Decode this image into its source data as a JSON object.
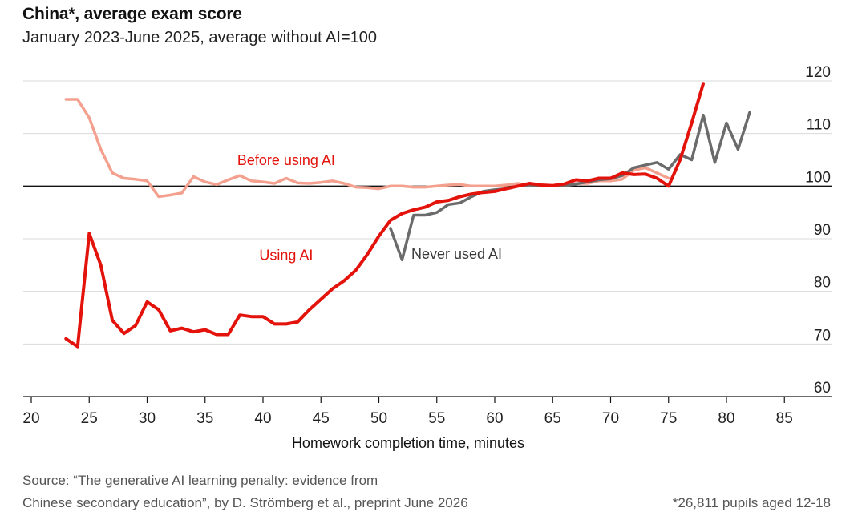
{
  "header": {
    "title": "China*, average exam score",
    "subtitle": "January 2023-June 2025, average without AI=100"
  },
  "footer": {
    "source_line1": "Source: “The generative AI learning penalty: evidence from",
    "source_line2": "Chinese secondary education”, by D. Strömberg et al., preprint June 2026",
    "note": "*26,811 pupils aged 12-18"
  },
  "chart_data": {
    "type": "line",
    "title": "China*, average exam score",
    "subtitle": "January 2023-June 2025, average without AI=100",
    "xlabel": "Homework completion time, minutes",
    "ylabel": "",
    "xlim": [
      19,
      88
    ],
    "ylim": [
      60,
      120
    ],
    "xticks": [
      20,
      25,
      30,
      35,
      40,
      45,
      50,
      55,
      60,
      65,
      70,
      75,
      80,
      85
    ],
    "yticks": [
      60,
      70,
      80,
      90,
      100,
      110,
      120
    ],
    "reference_line": 100,
    "grid": "horizontal",
    "colors": {
      "using_ai": "#e3120b",
      "before_ai": "#f4a08f",
      "never_ai": "#6b6b6b",
      "grid": "#d9d9d9",
      "reference": "#121212"
    },
    "series": [
      {
        "name": "Before using AI",
        "color": "#f4a08f",
        "label_at": [
          42,
          104
        ],
        "points": [
          [
            23,
            116.5
          ],
          [
            24,
            116.5
          ],
          [
            25,
            113
          ],
          [
            26,
            107
          ],
          [
            27,
            102.5
          ],
          [
            28,
            101.5
          ],
          [
            29,
            101.3
          ],
          [
            30,
            101
          ],
          [
            31,
            98
          ],
          [
            32,
            98.3
          ],
          [
            33,
            98.7
          ],
          [
            34,
            101.8
          ],
          [
            35,
            100.8
          ],
          [
            36,
            100.3
          ],
          [
            37,
            101.2
          ],
          [
            38,
            102
          ],
          [
            39,
            101
          ],
          [
            40,
            100.8
          ],
          [
            41,
            100.5
          ],
          [
            42,
            101.5
          ],
          [
            43,
            100.6
          ],
          [
            44,
            100.5
          ],
          [
            45,
            100.7
          ],
          [
            46,
            101
          ],
          [
            47,
            100.5
          ],
          [
            48,
            99.8
          ],
          [
            49,
            99.7
          ],
          [
            50,
            99.5
          ],
          [
            51,
            100
          ],
          [
            52,
            100
          ],
          [
            53,
            99.8
          ],
          [
            54,
            99.8
          ],
          [
            55,
            100
          ],
          [
            56,
            100.2
          ],
          [
            57,
            100.3
          ],
          [
            58,
            100
          ],
          [
            59,
            100
          ],
          [
            60,
            100
          ],
          [
            61,
            100.2
          ],
          [
            62,
            100.5
          ],
          [
            63,
            100
          ],
          [
            64,
            100
          ],
          [
            65,
            100
          ],
          [
            66,
            100.3
          ],
          [
            67,
            100.5
          ],
          [
            68,
            100.5
          ],
          [
            69,
            101
          ],
          [
            70,
            101
          ],
          [
            71,
            101.3
          ],
          [
            72,
            103
          ],
          [
            73,
            103.5
          ],
          [
            74,
            102.5
          ],
          [
            75,
            101.5
          ]
        ]
      },
      {
        "name": "Using AI",
        "color": "#e3120b",
        "label_at": [
          42,
          86
        ],
        "points": [
          [
            23,
            71
          ],
          [
            24,
            69.5
          ],
          [
            25,
            91
          ],
          [
            26,
            85
          ],
          [
            27,
            74.5
          ],
          [
            28,
            72
          ],
          [
            29,
            73.5
          ],
          [
            30,
            78
          ],
          [
            31,
            76.5
          ],
          [
            32,
            72.5
          ],
          [
            33,
            73
          ],
          [
            34,
            72.3
          ],
          [
            35,
            72.7
          ],
          [
            36,
            71.8
          ],
          [
            37,
            71.8
          ],
          [
            38,
            75.5
          ],
          [
            39,
            75.2
          ],
          [
            40,
            75.2
          ],
          [
            41,
            73.8
          ],
          [
            42,
            73.8
          ],
          [
            43,
            74.2
          ],
          [
            44,
            76.5
          ],
          [
            45,
            78.5
          ],
          [
            46,
            80.5
          ],
          [
            47,
            82
          ],
          [
            48,
            84
          ],
          [
            49,
            87
          ],
          [
            50,
            90.5
          ],
          [
            51,
            93.5
          ],
          [
            52,
            94.8
          ],
          [
            53,
            95.5
          ],
          [
            54,
            96
          ],
          [
            55,
            97
          ],
          [
            56,
            97.3
          ],
          [
            57,
            98
          ],
          [
            58,
            98.5
          ],
          [
            59,
            98.8
          ],
          [
            60,
            99
          ],
          [
            61,
            99.5
          ],
          [
            62,
            100
          ],
          [
            63,
            100.5
          ],
          [
            64,
            100.2
          ],
          [
            65,
            100.1
          ],
          [
            66,
            100.4
          ],
          [
            67,
            101.2
          ],
          [
            68,
            101
          ],
          [
            69,
            101.5
          ],
          [
            70,
            101.5
          ],
          [
            71,
            102.5
          ],
          [
            72,
            102.2
          ],
          [
            73,
            102.3
          ],
          [
            74,
            101.5
          ],
          [
            75,
            100
          ],
          [
            76,
            105
          ],
          [
            77,
            112
          ],
          [
            78,
            119.5
          ]
        ]
      },
      {
        "name": "Never used AI",
        "color": "#6b6b6b",
        "label_at": [
          52.8,
          86.2
        ],
        "points": [
          [
            51,
            92
          ],
          [
            52,
            86
          ],
          [
            53,
            94.5
          ],
          [
            54,
            94.5
          ],
          [
            55,
            95
          ],
          [
            56,
            96.5
          ],
          [
            57,
            96.8
          ],
          [
            58,
            98
          ],
          [
            59,
            99
          ],
          [
            60,
            99.3
          ],
          [
            61,
            99.5
          ],
          [
            62,
            100
          ],
          [
            63,
            100.2
          ],
          [
            64,
            100.1
          ],
          [
            65,
            100
          ],
          [
            66,
            100
          ],
          [
            67,
            100.4
          ],
          [
            68,
            100.8
          ],
          [
            69,
            101.2
          ],
          [
            70,
            101.4
          ],
          [
            71,
            102
          ],
          [
            72,
            103.5
          ],
          [
            73,
            104
          ],
          [
            74,
            104.5
          ],
          [
            75,
            103.2
          ],
          [
            76,
            106
          ],
          [
            77,
            105
          ],
          [
            78,
            113.5
          ],
          [
            79,
            104.5
          ],
          [
            80,
            112
          ],
          [
            81,
            107
          ],
          [
            82,
            114
          ]
        ]
      }
    ]
  }
}
